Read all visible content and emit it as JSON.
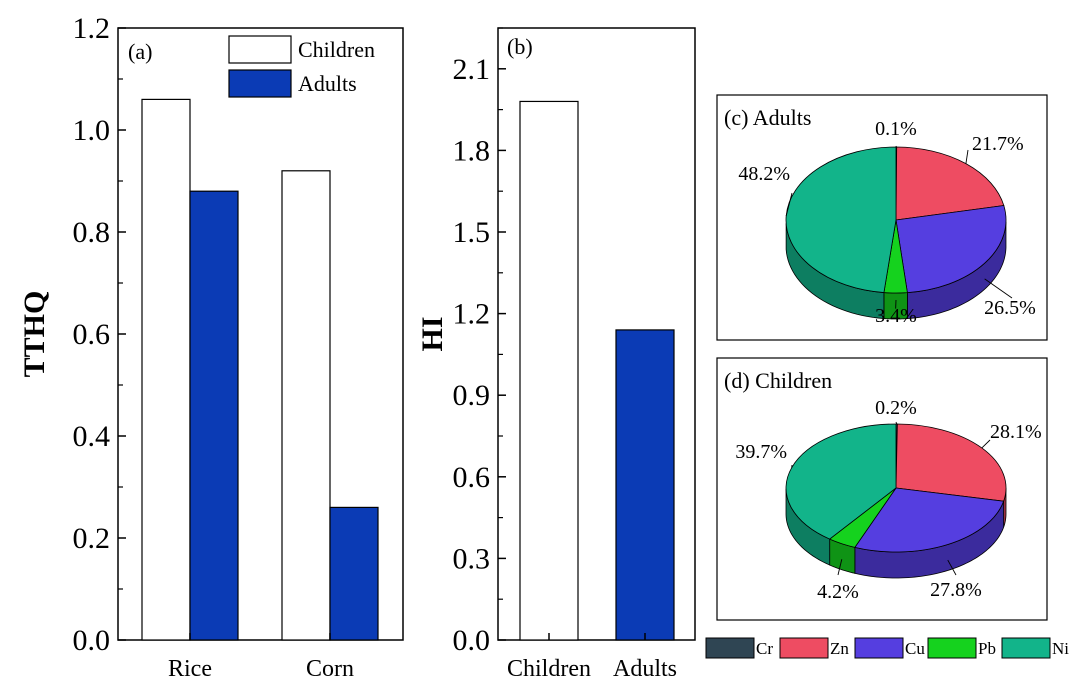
{
  "colors": {
    "children_bar": "#ffffff",
    "adults_bar": "#0b3bb5",
    "Cr": "#2f4553",
    "Zn": "#ee4c62",
    "Cu": "#553ee0",
    "Pb": "#15d21e",
    "Ni": "#12b48a"
  },
  "chart_data": [
    {
      "type": "bar",
      "panel_label": "(a)",
      "ylabel": "TTHQ",
      "xlabel": "",
      "ylim": [
        0,
        1.2
      ],
      "yticks": [
        "0.0",
        "0.2",
        "0.4",
        "0.6",
        "0.8",
        "1.0",
        "1.2"
      ],
      "categories": [
        "Rice",
        "Corn"
      ],
      "series": [
        {
          "name": "Children",
          "values": [
            1.06,
            0.92
          ]
        },
        {
          "name": "Adults",
          "values": [
            0.88,
            0.26
          ]
        }
      ],
      "legend": "top-right"
    },
    {
      "type": "bar",
      "panel_label": "(b)",
      "ylabel": "HI",
      "xlabel": "",
      "ylim": [
        0,
        2.25
      ],
      "yticks": [
        "0.0",
        "0.3",
        "0.6",
        "0.9",
        "1.2",
        "1.5",
        "1.8",
        "2.1"
      ],
      "categories": [
        "Children",
        "Adults"
      ],
      "values": [
        1.98,
        1.14
      ]
    },
    {
      "type": "pie",
      "panel_label": "(c) Adults",
      "slices": [
        {
          "name": "Cr",
          "value": 0.1,
          "label": "0.1%"
        },
        {
          "name": "Zn",
          "value": 21.7,
          "label": "21.7%"
        },
        {
          "name": "Cu",
          "value": 26.5,
          "label": "26.5%"
        },
        {
          "name": "Pb",
          "value": 3.4,
          "label": "3.4%"
        },
        {
          "name": "Ni",
          "value": 48.2,
          "label": "48.2%"
        }
      ]
    },
    {
      "type": "pie",
      "panel_label": "(d) Children",
      "slices": [
        {
          "name": "Cr",
          "value": 0.2,
          "label": "0.2%"
        },
        {
          "name": "Zn",
          "value": 28.1,
          "label": "28.1%"
        },
        {
          "name": "Cu",
          "value": 27.8,
          "label": "27.8%"
        },
        {
          "name": "Pb",
          "value": 4.2,
          "label": "4.2%"
        },
        {
          "name": "Ni",
          "value": 39.7,
          "label": "39.7%"
        }
      ]
    }
  ],
  "pie_legend": [
    "Cr",
    "Zn",
    "Cu",
    "Pb",
    "Ni"
  ]
}
